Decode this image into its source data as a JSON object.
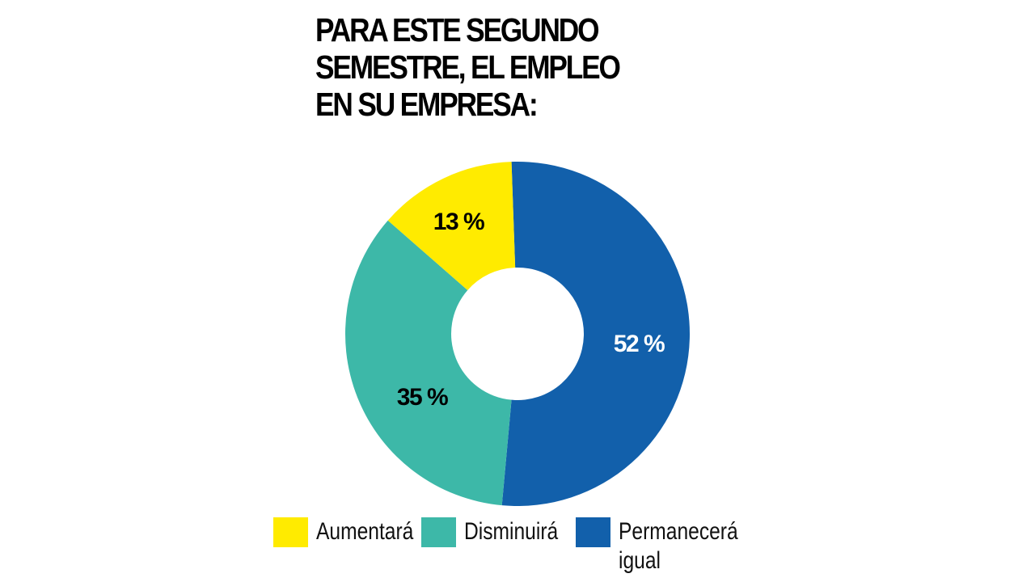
{
  "title": {
    "lines": [
      "PARA ESTE SEGUNDO",
      "SEMESTRE, EL EMPLEO",
      "EN SU EMPRESA:"
    ]
  },
  "legend": [
    {
      "label": "Aumentará",
      "color": "#FFEB00"
    },
    {
      "label": "Disminuirá",
      "color": "#3DB8A8"
    },
    {
      "label": "Permanecerá igual",
      "color": "#1260AB"
    }
  ],
  "chart_data": {
    "type": "pie",
    "subtype": "donut",
    "title": "PARA ESTE SEGUNDO SEMESTRE, EL EMPLEO EN SU EMPRESA:",
    "categories": [
      "Permanecerá igual",
      "Disminuirá",
      "Aumentará"
    ],
    "values": [
      52,
      35,
      13
    ],
    "labels": [
      "52 %",
      "35 %",
      "13 %"
    ],
    "colors": [
      "#1260AB",
      "#3DB8A8",
      "#FFEB00"
    ],
    "label_colors": [
      "#FFFFFF",
      "#000000",
      "#000000"
    ],
    "unit": "%",
    "legend_position": "bottom",
    "legend_order": [
      "Aumentará",
      "Disminuirá",
      "Permanecerá igual"
    ]
  }
}
